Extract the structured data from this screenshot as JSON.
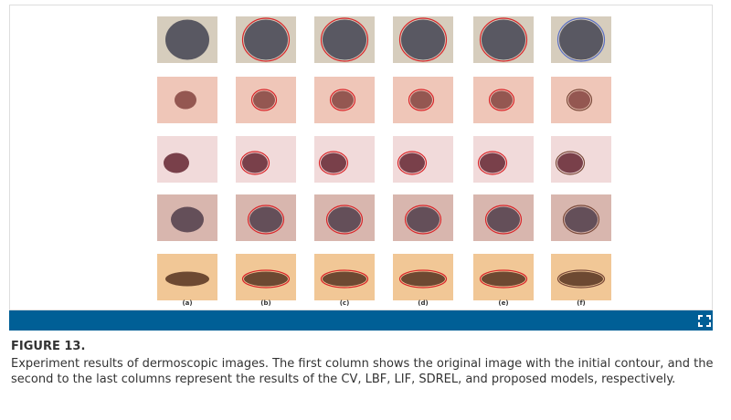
{
  "figure": {
    "column_labels": [
      "(a)",
      "(b)",
      "(c)",
      "(d)",
      "(e)",
      "(f)"
    ],
    "label": "FIGURE 13.",
    "caption": "Experiment results of dermoscopic images. The first column shows the original image with the initial contour, and the second to the last columns represent the results of the CV, LBF, LIF, SDREL, and proposed models, respectively."
  }
}
